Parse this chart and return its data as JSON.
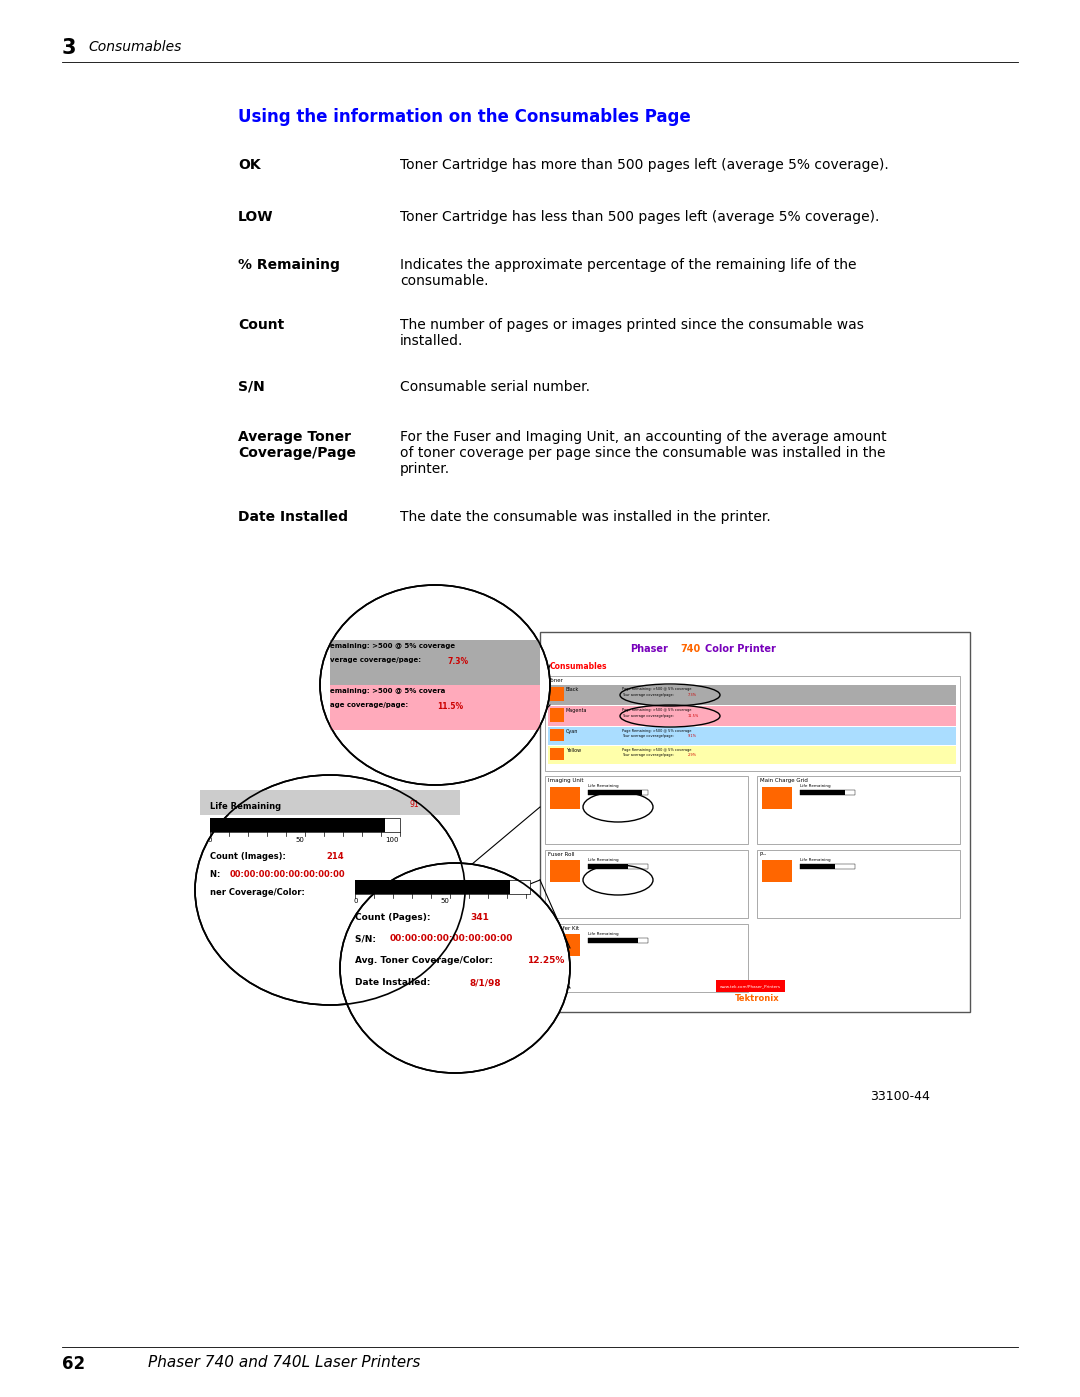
{
  "bg_color": "#ffffff",
  "header_number": "3",
  "header_text": "Consumables",
  "footer_number": "62",
  "footer_text": "Phaser 740 and 740L Laser Printers",
  "section_title": "Using the information on the Consumables Page",
  "section_title_color": "#0000ff",
  "figure_number": "33100-44",
  "orange_color": "#ff6600",
  "red_color": "#cc0000",
  "entries": [
    {
      "label": "OK",
      "text": "Toner Cartridge has more than 500 pages left (average 5% coverage).",
      "multiline": false
    },
    {
      "label": "LOW",
      "text": "Toner Cartridge has less than 500 pages left (average 5% coverage).",
      "multiline": false
    },
    {
      "label": "% Remaining",
      "text": "Indicates the approximate percentage of the remaining life of the\nconsumable.",
      "multiline": true
    },
    {
      "label": "Count",
      "text": "The number of pages or images printed since the consumable was\ninstalled.",
      "multiline": true
    },
    {
      "label": "S/N",
      "text": "Consumable serial number.",
      "multiline": false
    },
    {
      "label": "Average Toner\nCoverage/Page",
      "text": "For the Fuser and Imaging Unit, an accounting of the average amount\nof toner coverage per page since the consumable was installed in the\nprinter.",
      "multiline": true
    },
    {
      "label": "Date Installed",
      "text": "The date the consumable was installed in the printer.",
      "multiline": false
    }
  ]
}
